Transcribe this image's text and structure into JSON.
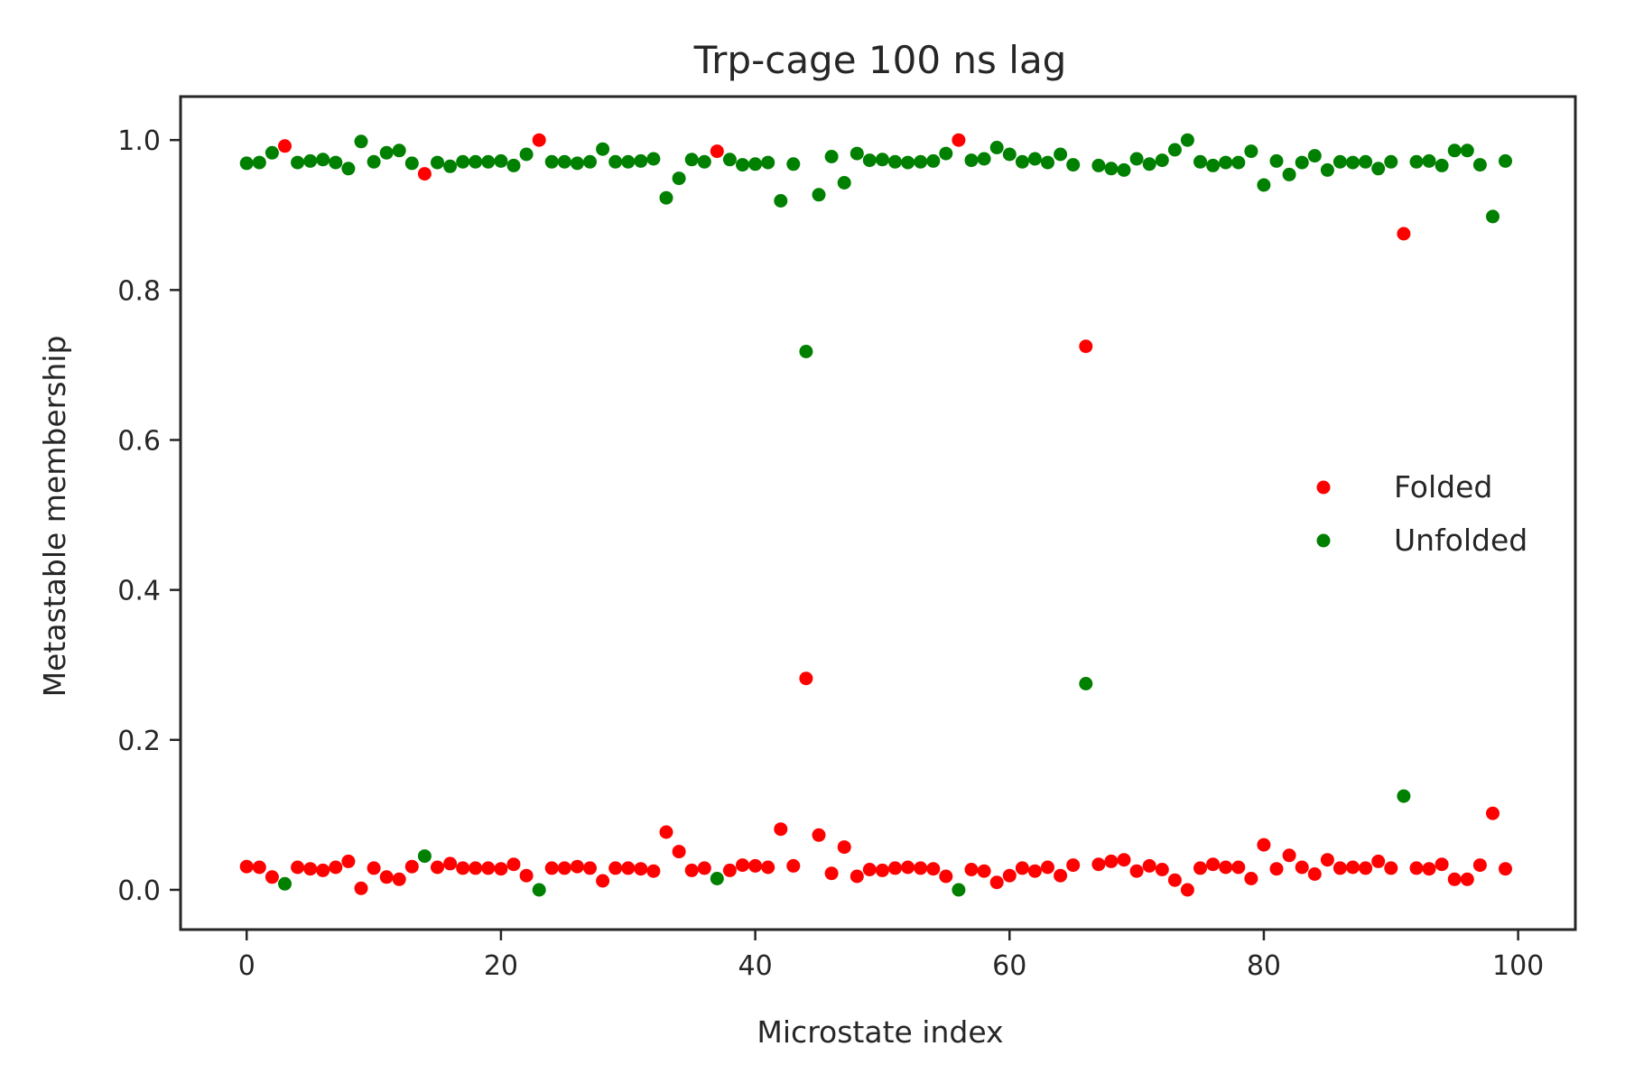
{
  "chart_data": {
    "type": "scatter",
    "title": "Trp-cage 100 ns lag",
    "xlabel": "Microstate index",
    "ylabel": "Metastable membership",
    "xlim": [
      -5.2,
      104.5
    ],
    "ylim": [
      -0.053,
      1.058
    ],
    "xticks": [
      0,
      20,
      40,
      60,
      80,
      100
    ],
    "xtick_labels": [
      "0",
      "20",
      "40",
      "60",
      "80",
      "100"
    ],
    "yticks": [
      0.0,
      0.2,
      0.4,
      0.6,
      0.8,
      1.0
    ],
    "ytick_labels": [
      "0.0",
      "0.2",
      "0.4",
      "0.6",
      "0.8",
      "1.0"
    ],
    "grid": false,
    "legend_position": "center-right",
    "x": [
      0,
      1,
      2,
      3,
      4,
      5,
      6,
      7,
      8,
      9,
      10,
      11,
      12,
      13,
      14,
      15,
      16,
      17,
      18,
      19,
      20,
      21,
      22,
      23,
      24,
      25,
      26,
      27,
      28,
      29,
      30,
      31,
      32,
      33,
      34,
      35,
      36,
      37,
      38,
      39,
      40,
      41,
      42,
      43,
      44,
      45,
      46,
      47,
      48,
      49,
      50,
      51,
      52,
      53,
      54,
      55,
      56,
      57,
      58,
      59,
      60,
      61,
      62,
      63,
      64,
      65,
      66,
      67,
      68,
      69,
      70,
      71,
      72,
      73,
      74,
      75,
      76,
      77,
      78,
      79,
      80,
      81,
      82,
      83,
      84,
      85,
      86,
      87,
      88,
      89,
      90,
      91,
      92,
      93,
      94,
      95,
      96,
      97,
      98,
      99
    ],
    "series": [
      {
        "name": "Folded",
        "color": "#ff0000",
        "values": [
          0.031,
          0.03,
          0.017,
          0.992,
          0.03,
          0.028,
          0.026,
          0.03,
          0.038,
          0.002,
          0.029,
          0.017,
          0.014,
          0.031,
          0.955,
          0.03,
          0.035,
          0.029,
          0.029,
          0.029,
          0.028,
          0.034,
          0.019,
          1.0,
          0.029,
          0.029,
          0.031,
          0.029,
          0.012,
          0.029,
          0.029,
          0.028,
          0.025,
          0.077,
          0.051,
          0.026,
          0.029,
          0.985,
          0.026,
          0.033,
          0.032,
          0.03,
          0.081,
          0.032,
          0.282,
          0.073,
          0.022,
          0.057,
          0.018,
          0.027,
          0.026,
          0.029,
          0.03,
          0.029,
          0.028,
          0.018,
          1.0,
          0.027,
          0.025,
          0.01,
          0.019,
          0.029,
          0.025,
          0.03,
          0.019,
          0.033,
          0.725,
          0.034,
          0.038,
          0.04,
          0.025,
          0.032,
          0.027,
          0.013,
          0.0,
          0.029,
          0.034,
          0.03,
          0.03,
          0.015,
          0.06,
          0.028,
          0.046,
          0.03,
          0.021,
          0.04,
          0.029,
          0.03,
          0.029,
          0.038,
          0.029,
          0.875,
          0.029,
          0.028,
          0.034,
          0.014,
          0.014,
          0.033,
          0.102,
          0.028
        ]
      },
      {
        "name": "Unfolded",
        "color": "#008000",
        "values": [
          0.969,
          0.97,
          0.983,
          0.008,
          0.97,
          0.972,
          0.974,
          0.97,
          0.962,
          0.998,
          0.971,
          0.983,
          0.986,
          0.969,
          0.045,
          0.97,
          0.965,
          0.971,
          0.971,
          0.971,
          0.972,
          0.966,
          0.981,
          0.0,
          0.971,
          0.971,
          0.969,
          0.971,
          0.988,
          0.971,
          0.971,
          0.972,
          0.975,
          0.923,
          0.949,
          0.974,
          0.971,
          0.015,
          0.974,
          0.967,
          0.968,
          0.97,
          0.919,
          0.968,
          0.718,
          0.927,
          0.978,
          0.943,
          0.982,
          0.973,
          0.974,
          0.971,
          0.97,
          0.971,
          0.972,
          0.982,
          0.0,
          0.973,
          0.975,
          0.99,
          0.981,
          0.971,
          0.975,
          0.97,
          0.981,
          0.967,
          0.275,
          0.966,
          0.962,
          0.96,
          0.975,
          0.968,
          0.973,
          0.987,
          1.0,
          0.971,
          0.966,
          0.97,
          0.97,
          0.985,
          0.94,
          0.972,
          0.954,
          0.97,
          0.979,
          0.96,
          0.971,
          0.97,
          0.971,
          0.962,
          0.971,
          0.125,
          0.971,
          0.972,
          0.966,
          0.986,
          0.986,
          0.967,
          0.898,
          0.972
        ]
      }
    ]
  }
}
